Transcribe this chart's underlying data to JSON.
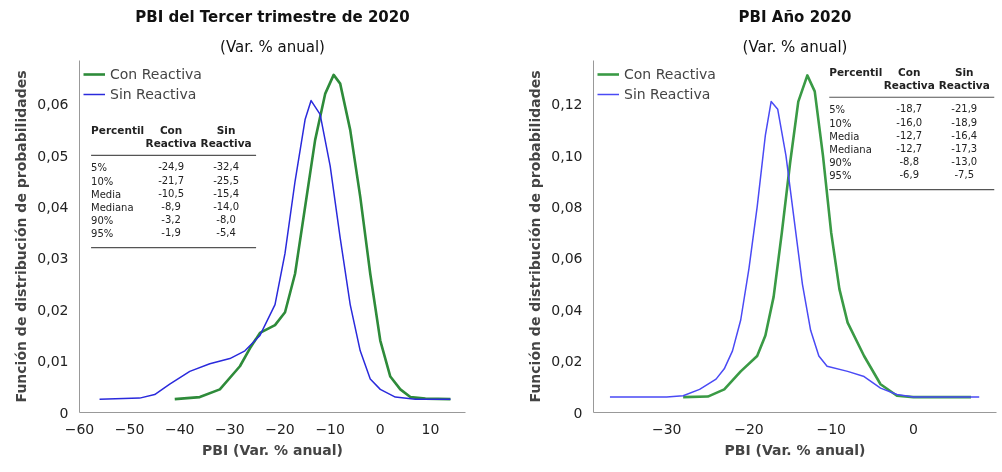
{
  "chart_data": [
    {
      "type": "line",
      "title": "PBI del Tercer trimestre de 2020",
      "subtitle": "(Var. % anual)",
      "xlabel": "PBI (Var. % anual)",
      "ylabel": "Función de distribución de probabilidades",
      "xlim": [
        -60,
        17
      ],
      "ylim": [
        0,
        0.0685
      ],
      "xticks": [
        -60,
        -50,
        -40,
        -30,
        -20,
        -10,
        0,
        10
      ],
      "yticks": [
        0,
        {
          "value": 0.01,
          "label": "0,01"
        },
        {
          "value": 0.02,
          "label": "0,02"
        },
        {
          "value": 0.03,
          "label": "0,03"
        },
        {
          "value": 0.04,
          "label": "0,04"
        },
        {
          "value": 0.05,
          "label": "0,05"
        },
        {
          "value": 0.06,
          "label": "0,06"
        }
      ],
      "grid": false,
      "legend": "top left",
      "series": [
        {
          "name": "Con Reactiva",
          "color": "#2e8b3a",
          "x": [
            -41,
            -36,
            -32,
            -28,
            -26,
            -24,
            -21,
            -19,
            -17,
            -15,
            -13,
            -11,
            -9.3,
            -8,
            -6,
            -4,
            -2,
            0,
            2,
            4,
            6,
            9,
            14
          ],
          "values": [
            0.0026,
            0.003,
            0.0045,
            0.009,
            0.0125,
            0.0155,
            0.017,
            0.0195,
            0.027,
            0.04,
            0.053,
            0.062,
            0.0657,
            0.064,
            0.055,
            0.042,
            0.027,
            0.014,
            0.007,
            0.0045,
            0.003,
            0.0027,
            0.0026
          ]
        },
        {
          "name": "Sin Reactiva",
          "color": "#2a2adc",
          "x": [
            -56,
            -48,
            -45,
            -42,
            -38,
            -34,
            -30,
            -27,
            -24,
            -21,
            -19,
            -17,
            -15,
            -13.8,
            -12,
            -10,
            -8,
            -6,
            -4,
            -2,
            0,
            3,
            7,
            14
          ],
          "values": [
            0.0026,
            0.0028,
            0.0035,
            0.0055,
            0.008,
            0.0095,
            0.0105,
            0.012,
            0.015,
            0.021,
            0.031,
            0.045,
            0.057,
            0.0607,
            0.058,
            0.048,
            0.034,
            0.021,
            0.012,
            0.0065,
            0.0045,
            0.003,
            0.0026,
            0.0026
          ]
        }
      ],
      "annotations": [
        "Percentil\tCon\nReactiva\tSin\nReactiva",
        "5%\t-24,9\t-32,4",
        "10%\t-21,7\t-25,5",
        "Media\t-10,5\t-15,4",
        "Mediana\t-8,9\t-14,0",
        "90%\t-3,2\t-8,0",
        "95%\t-1,9\t-5,4"
      ]
    },
    {
      "type": "line",
      "title": "PBI Año 2020",
      "subtitle": "(Var. % anual)",
      "xlabel": "PBI (Var. % anual)",
      "ylabel": "Función de distribución de probabilidades",
      "xlim": [
        -38.9,
        10.1
      ],
      "ylim": [
        0,
        0.137
      ],
      "xticks": [
        -30,
        -20,
        -10,
        0
      ],
      "yticks": [
        0,
        {
          "value": 0.02,
          "label": "0,02"
        },
        {
          "value": 0.04,
          "label": "0,04"
        },
        {
          "value": 0.06,
          "label": "0,06"
        },
        {
          "value": 0.08,
          "label": "0,08"
        },
        {
          "value": 0.1,
          "label": "0,10"
        },
        {
          "value": 0.12,
          "label": "0,12"
        }
      ],
      "grid": false,
      "legend": "top left",
      "series": [
        {
          "name": "Con Reactiva",
          "color": "#3a9a45",
          "x": [
            -28,
            -25,
            -23,
            -21,
            -19,
            -18,
            -17,
            -16,
            -15,
            -14,
            -12.9,
            -12,
            -11,
            -10,
            -9,
            -8,
            -6,
            -4,
            -2,
            0,
            7
          ],
          "values": [
            0.006,
            0.0062,
            0.009,
            0.016,
            0.022,
            0.03,
            0.045,
            0.07,
            0.097,
            0.121,
            0.1312,
            0.125,
            0.1,
            0.07,
            0.048,
            0.035,
            0.022,
            0.011,
            0.0065,
            0.006,
            0.006
          ]
        },
        {
          "name": "Sin Reactiva",
          "color": "#4a4af5",
          "x": [
            -36.9,
            -30,
            -28,
            -26,
            -24,
            -23,
            -22,
            -21,
            -20,
            -19,
            -18,
            -17.3,
            -16.5,
            -15.5,
            -14.5,
            -13.5,
            -12.5,
            -11.5,
            -10.5,
            -8,
            -6,
            -4,
            -2,
            0,
            8
          ],
          "values": [
            0.006,
            0.006,
            0.0065,
            0.009,
            0.013,
            0.017,
            0.024,
            0.036,
            0.056,
            0.08,
            0.108,
            0.121,
            0.118,
            0.1,
            0.075,
            0.05,
            0.032,
            0.022,
            0.018,
            0.016,
            0.014,
            0.0095,
            0.007,
            0.006,
            0.006
          ]
        }
      ],
      "annotations": [
        "Percentil\tCon\nReactiva\tSin\nReactiva",
        "5%\t-18,7\t-21,9",
        "10%\t-16,0\t-18,9",
        "Media\t-12,7\t-16,4",
        "Mediana\t-12,7\t-17,3",
        "90%\t-8,8\t-13,0",
        "95%\t-6,9\t-7,5"
      ]
    }
  ]
}
